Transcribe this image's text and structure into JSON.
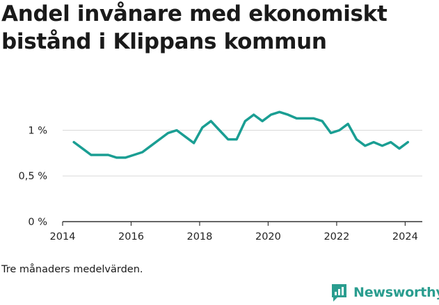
{
  "title": "Andel invånare med ekonomiskt bistånd i Klippans kommun",
  "footnote": "Tre månaders medelvärden.",
  "brand": {
    "name": "Newsworthy",
    "logo_icon": "newsworthy-logo-icon"
  },
  "colors": {
    "line": "#1a9e93",
    "grid": "#d9d9d9",
    "axis": "#333333",
    "brand": "#2a9d8f"
  },
  "chart_data": {
    "type": "line",
    "title": "Andel invånare med ekonomiskt bistånd i Klippans kommun",
    "xlabel": "",
    "ylabel": "",
    "xlim": [
      2014,
      2024.5
    ],
    "ylim": [
      0,
      1.3
    ],
    "grid": true,
    "x_ticks": [
      {
        "value": 2014,
        "label": "2014"
      },
      {
        "value": 2016,
        "label": "2016"
      },
      {
        "value": 2018,
        "label": "2018"
      },
      {
        "value": 2020,
        "label": "2020"
      },
      {
        "value": 2022,
        "label": "2022"
      },
      {
        "value": 2024,
        "label": "2024"
      }
    ],
    "y_ticks": [
      {
        "value": 0,
        "label": "0 %"
      },
      {
        "value": 0.5,
        "label": "0,5 %"
      },
      {
        "value": 1,
        "label": "1 %"
      }
    ],
    "series": [
      {
        "name": "",
        "x": [
          2014.33,
          2014.58,
          2014.83,
          2015.08,
          2015.33,
          2015.58,
          2015.83,
          2016.08,
          2016.33,
          2016.58,
          2016.83,
          2017.08,
          2017.33,
          2017.58,
          2017.83,
          2018.08,
          2018.33,
          2018.58,
          2018.83,
          2019.08,
          2019.33,
          2019.58,
          2019.83,
          2020.08,
          2020.33,
          2020.58,
          2020.83,
          2021.08,
          2021.33,
          2021.58,
          2021.83,
          2022.08,
          2022.33,
          2022.58,
          2022.83,
          2023.08,
          2023.33,
          2023.58,
          2023.83,
          2024.08
        ],
        "y": [
          0.87,
          0.8,
          0.73,
          0.73,
          0.73,
          0.7,
          0.7,
          0.73,
          0.76,
          0.83,
          0.9,
          0.97,
          1.0,
          0.93,
          0.86,
          1.03,
          1.1,
          1.0,
          0.9,
          0.9,
          1.1,
          1.17,
          1.1,
          1.17,
          1.2,
          1.17,
          1.13,
          1.13,
          1.13,
          1.1,
          0.97,
          1.0,
          1.07,
          0.9,
          0.83,
          0.87,
          0.83,
          0.87,
          0.8,
          0.87
        ]
      }
    ]
  }
}
